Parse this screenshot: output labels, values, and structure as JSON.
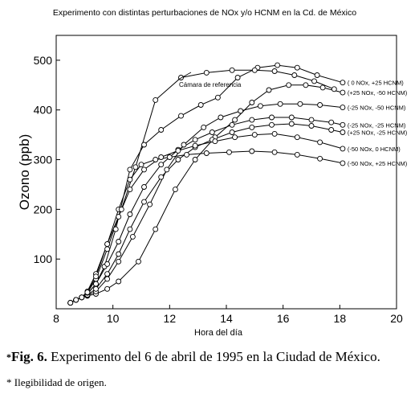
{
  "chart_data": {
    "type": "line",
    "title": "Experimento con distintas perturbaciones de NOx y/o HCNM en la Cd. de México",
    "xlabel": "Hora del día",
    "ylabel": "Ozono  (ppb)",
    "xlim": [
      8,
      20
    ],
    "ylim": [
      0,
      550
    ],
    "xticks": [
      "8",
      "10",
      "12",
      "14",
      "16",
      "18",
      "20"
    ],
    "yticks": [
      "100",
      "200",
      "300",
      "400",
      "500"
    ],
    "grid": false,
    "annotation": "Cámara de referencia",
    "series": [
      {
        "name": "( 0 NOx, +25 HCNM)",
        "x": [
          8.5,
          8.7,
          8.9,
          9.1,
          9.4,
          9.7,
          10.1,
          10.6,
          11.1,
          11.7,
          12.4,
          13.1,
          13.7,
          14.4,
          15.1,
          15.8,
          16.5,
          17.2,
          18.1
        ],
        "y": [
          12,
          18,
          23,
          30,
          50,
          85,
          160,
          280,
          330,
          360,
          388,
          410,
          425,
          465,
          485,
          490,
          485,
          470,
          455
        ]
      },
      {
        "name": "(+25 NOx, -50 HCNM)",
        "x": [
          8.5,
          8.7,
          8.9,
          9.1,
          9.4,
          9.8,
          10.2,
          10.9,
          11.5,
          12.2,
          12.9,
          13.6,
          14.3,
          14.9,
          15.5,
          16.2,
          16.8,
          17.4,
          18.1
        ],
        "y": [
          12,
          18,
          23,
          26,
          30,
          40,
          55,
          95,
          160,
          240,
          300,
          345,
          380,
          415,
          440,
          450,
          450,
          445,
          435
        ]
      },
      {
        "name": "(-25 NOx, -50 HCNM)",
        "x": [
          8.5,
          8.7,
          8.9,
          9.1,
          9.4,
          9.8,
          10.2,
          10.7,
          11.3,
          11.9,
          12.5,
          13.2,
          13.8,
          14.5,
          15.2,
          15.9,
          16.6,
          17.3,
          18.1
        ],
        "y": [
          12,
          18,
          23,
          27,
          35,
          60,
          95,
          145,
          210,
          280,
          330,
          365,
          385,
          398,
          408,
          412,
          412,
          410,
          405
        ]
      },
      {
        "name": "(-25 NOx, -25 HCNM)",
        "x": [
          8.5,
          8.7,
          8.9,
          9.1,
          9.4,
          9.8,
          10.2,
          10.6,
          11.1,
          11.7,
          12.3,
          12.9,
          13.5,
          14.2,
          14.9,
          15.6,
          16.3,
          17.0,
          17.7,
          18.1
        ],
        "y": [
          12,
          18,
          23,
          30,
          50,
          90,
          135,
          190,
          245,
          290,
          320,
          340,
          355,
          370,
          380,
          385,
          385,
          380,
          375,
          370
        ]
      },
      {
        "name": "(+25 NOx, -25 HCNM)",
        "x": [
          8.5,
          8.7,
          8.9,
          9.1,
          9.4,
          9.8,
          10.2,
          10.6,
          11.1,
          11.7,
          12.3,
          12.9,
          13.5,
          14.2,
          14.9,
          15.6,
          16.3,
          17.0,
          17.7,
          18.1
        ],
        "y": [
          12,
          18,
          23,
          28,
          40,
          70,
          110,
          160,
          215,
          265,
          300,
          325,
          340,
          355,
          365,
          370,
          372,
          368,
          360,
          355
        ]
      },
      {
        "name": "(-50 NOx, 0 HCNM)",
        "x": [
          8.5,
          8.7,
          8.9,
          9.1,
          9.4,
          9.8,
          10.2,
          10.6,
          11.1,
          11.7,
          12.3,
          12.9,
          13.6,
          14.3,
          15.0,
          15.7,
          16.5,
          17.3,
          18.1
        ],
        "y": [
          12,
          18,
          23,
          32,
          60,
          120,
          185,
          240,
          280,
          305,
          318,
          328,
          337,
          345,
          350,
          352,
          345,
          335,
          322
        ]
      },
      {
        "name": "(-50 NOx, +25 HCNM)",
        "x": [
          8.5,
          8.7,
          8.9,
          9.1,
          9.4,
          9.8,
          10.2,
          10.6,
          11.0,
          11.5,
          12.0,
          12.6,
          13.3,
          14.1,
          14.9,
          15.7,
          16.5,
          17.3,
          18.1
        ],
        "y": [
          12,
          18,
          23,
          35,
          70,
          130,
          200,
          260,
          290,
          300,
          305,
          310,
          313,
          315,
          317,
          315,
          310,
          302,
          293
        ]
      },
      {
        "name": "Cámara de referencia",
        "x": [
          8.5,
          8.7,
          8.9,
          9.1,
          9.4,
          9.8,
          10.3,
          10.8,
          11.5,
          12.4,
          13.3,
          14.2,
          15.0,
          15.7,
          16.4,
          17.1,
          17.8
        ],
        "y": [
          12,
          18,
          23,
          33,
          65,
          130,
          200,
          285,
          420,
          465,
          475,
          480,
          480,
          478,
          470,
          458,
          442
        ]
      }
    ]
  },
  "caption": {
    "marker": "*",
    "figure_label": "Fig. 6.",
    "text": " Experimento del 6 de abril de 1995 en la Ciudad de México."
  },
  "footnote": "* Ilegibilidad de origen."
}
